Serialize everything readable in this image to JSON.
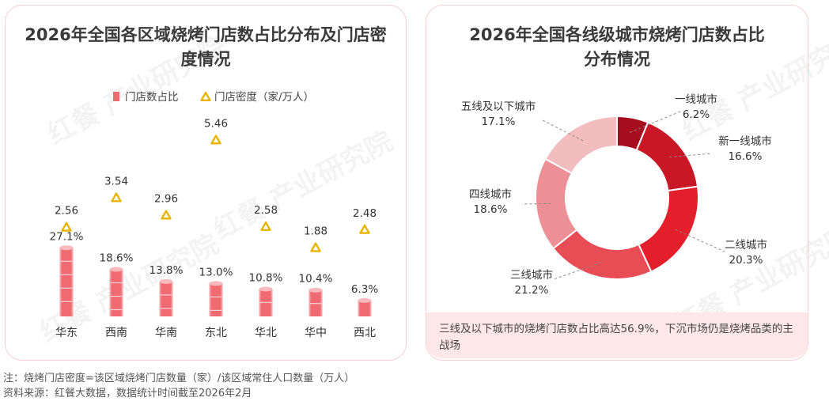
{
  "left_panel": {
    "title": "2026年全国各区域烧烤门店数占比分布及门店密度情况"
  },
  "right_panel": {
    "title": "2026年全国各线级城市烧烤门店数占比分布情况"
  },
  "watermark": {
    "text": "红餐 产业研究院"
  },
  "chart_data": [
    {
      "type": "bar",
      "title": "2026年全国各区域烧烤门店数占比分布及门店密度情况",
      "categories": [
        "华东",
        "西南",
        "华南",
        "东北",
        "华北",
        "华中",
        "西北"
      ],
      "series": [
        {
          "name": "门店数占比",
          "unit": "%",
          "values": [
            27.1,
            18.6,
            13.8,
            13.0,
            10.8,
            10.4,
            6.3
          ],
          "labels": [
            "27.1%",
            "18.6%",
            "13.8%",
            "13.0%",
            "10.8%",
            "10.4%",
            "6.3%"
          ],
          "color": "#f06a72"
        },
        {
          "name": "门店密度（家/万人）",
          "type": "scatter",
          "values": [
            2.56,
            3.54,
            2.96,
            5.46,
            2.58,
            1.88,
            2.48
          ],
          "labels": [
            "2.56",
            "3.54",
            "2.96",
            "5.46",
            "2.58",
            "1.88",
            "2.48"
          ],
          "color": "#e8b400"
        }
      ],
      "legend": [
        "门店数占比",
        "门店密度（家/万人）"
      ],
      "legend_position": "top"
    },
    {
      "type": "pie",
      "variant": "donut",
      "title": "2026年全国各线级城市烧烤门店数占比分布情况",
      "labels": [
        "一线城市",
        "新一线城市",
        "二线城市",
        "三线城市",
        "四线城市",
        "五线及以下城市"
      ],
      "values": [
        6.2,
        16.6,
        20.3,
        21.2,
        18.6,
        17.1
      ],
      "value_labels": [
        "6.2%",
        "16.6%",
        "20.3%",
        "21.2%",
        "18.6%",
        "17.1%"
      ],
      "colors": [
        "#a80d1d",
        "#c81725",
        "#e21f2b",
        "#e84c55",
        "#ec9095",
        "#f3bcbf"
      ]
    }
  ],
  "callout": {
    "text": "三线及以下城市的烧烤门店数占比高达56.9%，下沉市场仍是烧烤品类的主战场"
  },
  "footnotes": {
    "note": "注：烧烤门店密度=该区域烧烤门店数量（家）/该区域常住人口数量（万人）",
    "source": "资料来源：红餐大数据，数据统计时间截至2026年2月"
  }
}
